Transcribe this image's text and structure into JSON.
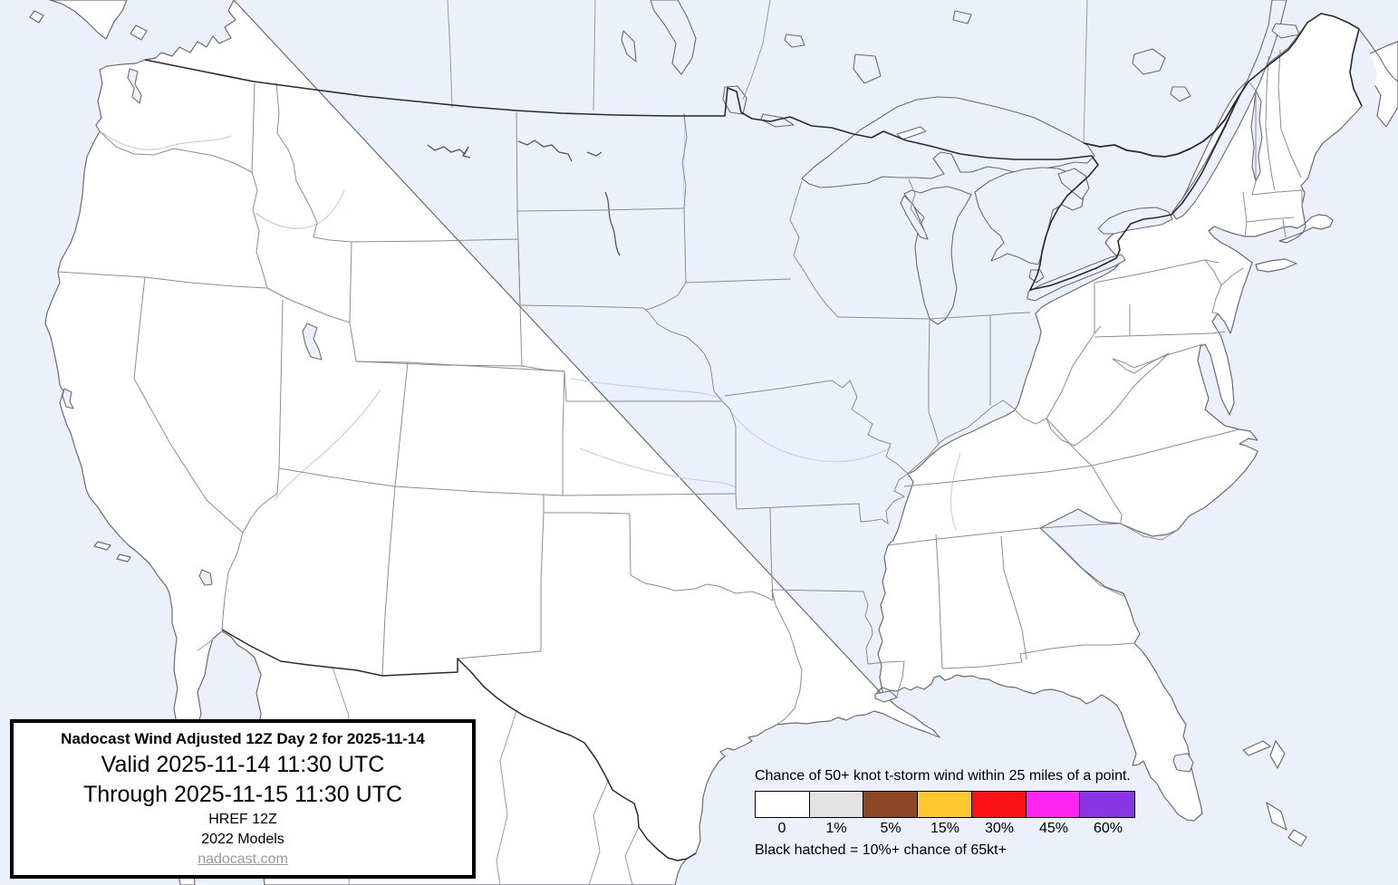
{
  "map": {
    "region_label": "CONUS t-storm wind probability map",
    "water_color": "#ecf0fb",
    "land_color": "#ffffff",
    "coast_color": "#6b6b70",
    "state_border_color": "#8c8c90",
    "national_border_color": "#2b2b2f",
    "river_color": "#c9d5ef",
    "risk_areas": "none (0% everywhere)"
  },
  "info_box": {
    "title": "Nadocast Wind Adjusted 12Z Day 2 for 2025-11-14",
    "valid_line": "Valid 2025-11-14 11:30 UTC",
    "through_line": "Through 2025-11-15 11:30 UTC",
    "model": "HREF 12Z",
    "models_year": "2022 Models",
    "site": "nadocast.com"
  },
  "legend": {
    "title": "Chance of 50+ knot t-storm wind within 25 miles of a point.",
    "note": "Black hatched = 10%+ chance of 65kt+",
    "bins": [
      {
        "label": "0",
        "color": "#ffffff"
      },
      {
        "label": "1%",
        "color": "#e3e3e3"
      },
      {
        "label": "5%",
        "color": "#8b4726"
      },
      {
        "label": "15%",
        "color": "#ffc82e"
      },
      {
        "label": "30%",
        "color": "#fb1116"
      },
      {
        "label": "45%",
        "color": "#fe24f1"
      },
      {
        "label": "60%",
        "color": "#8a36e4"
      }
    ]
  }
}
